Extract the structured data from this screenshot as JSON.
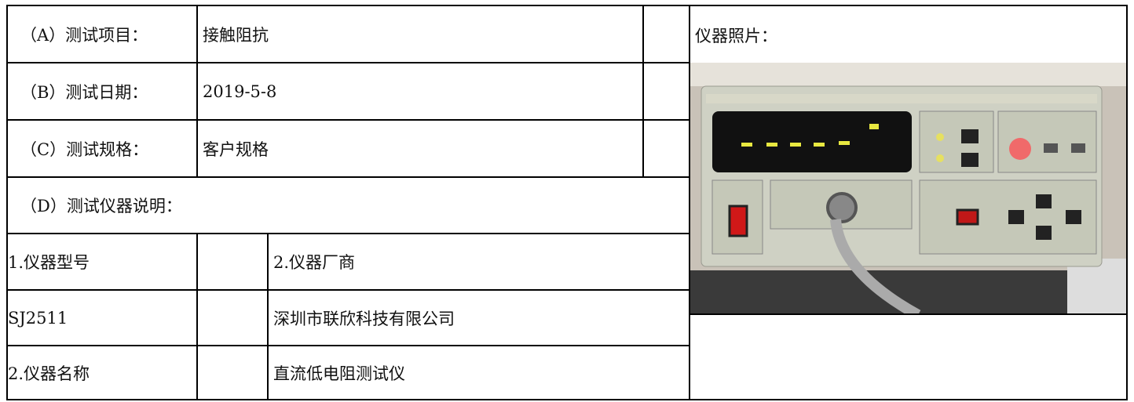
{
  "table": {
    "rows": [
      [
        "（A）测试项目：",
        "接触阻抗"
      ],
      [
        "（B）测试日期：",
        "2019-5-8"
      ],
      [
        "（C）测试规格：",
        "客户规格"
      ],
      [
        "（D）测试仪器说明："
      ]
    ],
    "instrument_rows": [
      [
        "1.仪器型号",
        "2.仪器厂商"
      ],
      [
        "SJ2511",
        "深圳市联欣科技有限公司"
      ],
      [
        "2.仪器名称",
        "直流低电阻测试仪"
      ]
    ]
  },
  "photo": {
    "label": "仪器照片："
  }
}
